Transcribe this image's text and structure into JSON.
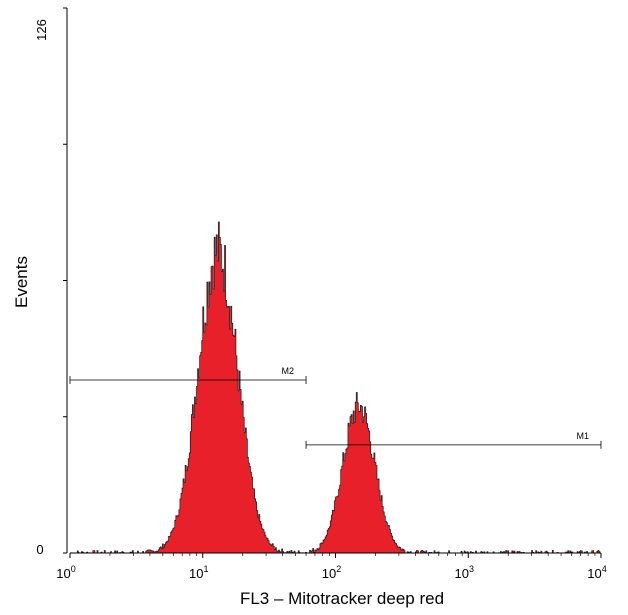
{
  "chart_data": {
    "type": "histogram",
    "xlabel": "FL3 – Mitotracker deep red",
    "ylabel": "Events",
    "x_scale": "log",
    "xlim": [
      1,
      10000
    ],
    "ylim": [
      0,
      126
    ],
    "x_ticks": [
      {
        "value": 1,
        "base": "10",
        "exp": "0"
      },
      {
        "value": 10,
        "base": "10",
        "exp": "1"
      },
      {
        "value": 100,
        "base": "10",
        "exp": "2"
      },
      {
        "value": 1000,
        "base": "10",
        "exp": "3"
      },
      {
        "value": 10000,
        "base": "10",
        "exp": "4"
      }
    ],
    "y_tick_labels": [
      {
        "value": 0,
        "label": "0"
      },
      {
        "value": 126,
        "label": "126"
      }
    ],
    "y_minor_ticks": [
      31.5,
      63,
      94.5
    ],
    "fill_color": "#e8202a",
    "peaks": [
      {
        "center": 13,
        "sigma_log10": 0.15,
        "height": 70
      },
      {
        "center": 150,
        "sigma_log10": 0.12,
        "height": 34
      }
    ],
    "markers": [
      {
        "name": "M2",
        "from": 1,
        "to": 60,
        "level": 40
      },
      {
        "name": "M1",
        "from": 60,
        "to": 10000,
        "level": 25
      }
    ]
  }
}
